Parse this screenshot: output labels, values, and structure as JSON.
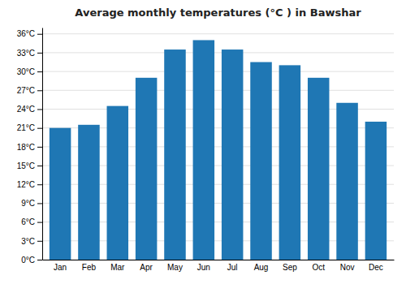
{
  "chart_data": {
    "type": "bar",
    "title": "Average monthly temperatures (°C ) in Bawshar",
    "categories": [
      "Jan",
      "Feb",
      "Mar",
      "Apr",
      "May",
      "Jun",
      "Jul",
      "Aug",
      "Sep",
      "Oct",
      "Nov",
      "Dec"
    ],
    "values": [
      21.0,
      21.5,
      24.5,
      29.0,
      33.5,
      35.0,
      33.5,
      31.5,
      31.0,
      29.0,
      25.0,
      22.0
    ],
    "ylim": [
      0,
      37
    ],
    "yticks": [
      {
        "value": 0,
        "label": "0°C"
      },
      {
        "value": 3,
        "label": "3°C"
      },
      {
        "value": 6,
        "label": "6°C"
      },
      {
        "value": 9,
        "label": "9°C"
      },
      {
        "value": 12,
        "label": "12°C"
      },
      {
        "value": 15,
        "label": "15°C"
      },
      {
        "value": 18,
        "label": "18°C"
      },
      {
        "value": 21,
        "label": "21°C"
      },
      {
        "value": 24,
        "label": "24°C"
      },
      {
        "value": 27,
        "label": "27°C"
      },
      {
        "value": 30,
        "label": "30°C"
      },
      {
        "value": 33,
        "label": "33°C"
      },
      {
        "value": 36,
        "label": "36°C"
      }
    ],
    "grid": true
  }
}
